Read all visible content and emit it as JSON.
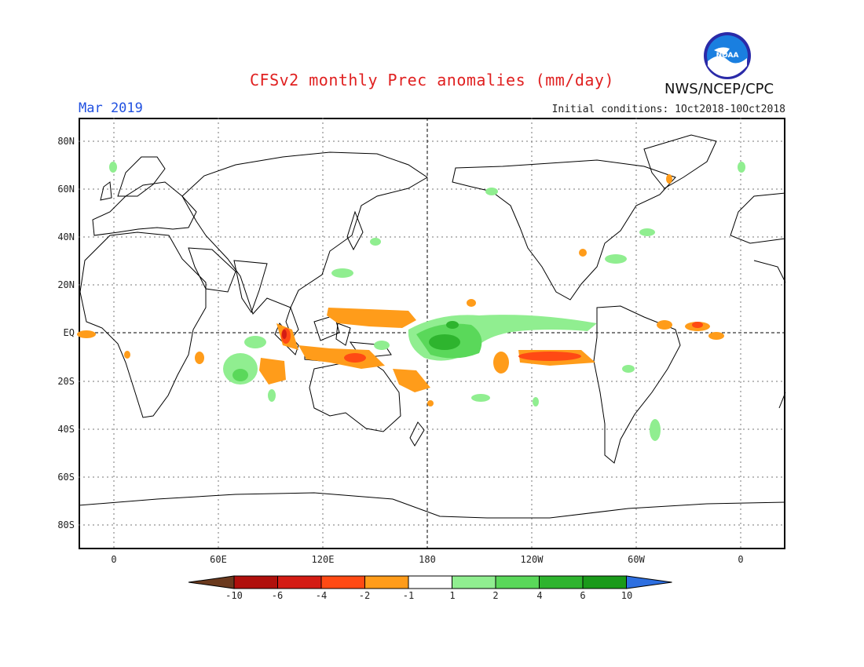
{
  "header": {
    "title": "CFSv2 monthly Prec anomalies (mm/day)",
    "month": "Mar 2019",
    "initial_conditions": "Initial conditions: 1Oct2018-10Oct2018",
    "org": "NWS/NCEP/CPC",
    "logo_text": "NOAA"
  },
  "map": {
    "lat_labels": [
      "80N",
      "60N",
      "40N",
      "20N",
      "EQ",
      "20S",
      "40S",
      "60S",
      "80S"
    ],
    "lon_labels": [
      "0",
      "60E",
      "120E",
      "180",
      "120W",
      "60W",
      "0"
    ]
  },
  "colorbar": {
    "labels": [
      "-10",
      "-6",
      "-4",
      "-2",
      "-1",
      "1",
      "2",
      "4",
      "6",
      "10"
    ],
    "colors": [
      "#6b3a1e",
      "#b0100c",
      "#d41c14",
      "#ff4a14",
      "#ff9c1a",
      "#ffffff",
      "#90ee90",
      "#5ad85a",
      "#2eb42e",
      "#1a9a1a",
      "#2e6fe0"
    ]
  }
}
